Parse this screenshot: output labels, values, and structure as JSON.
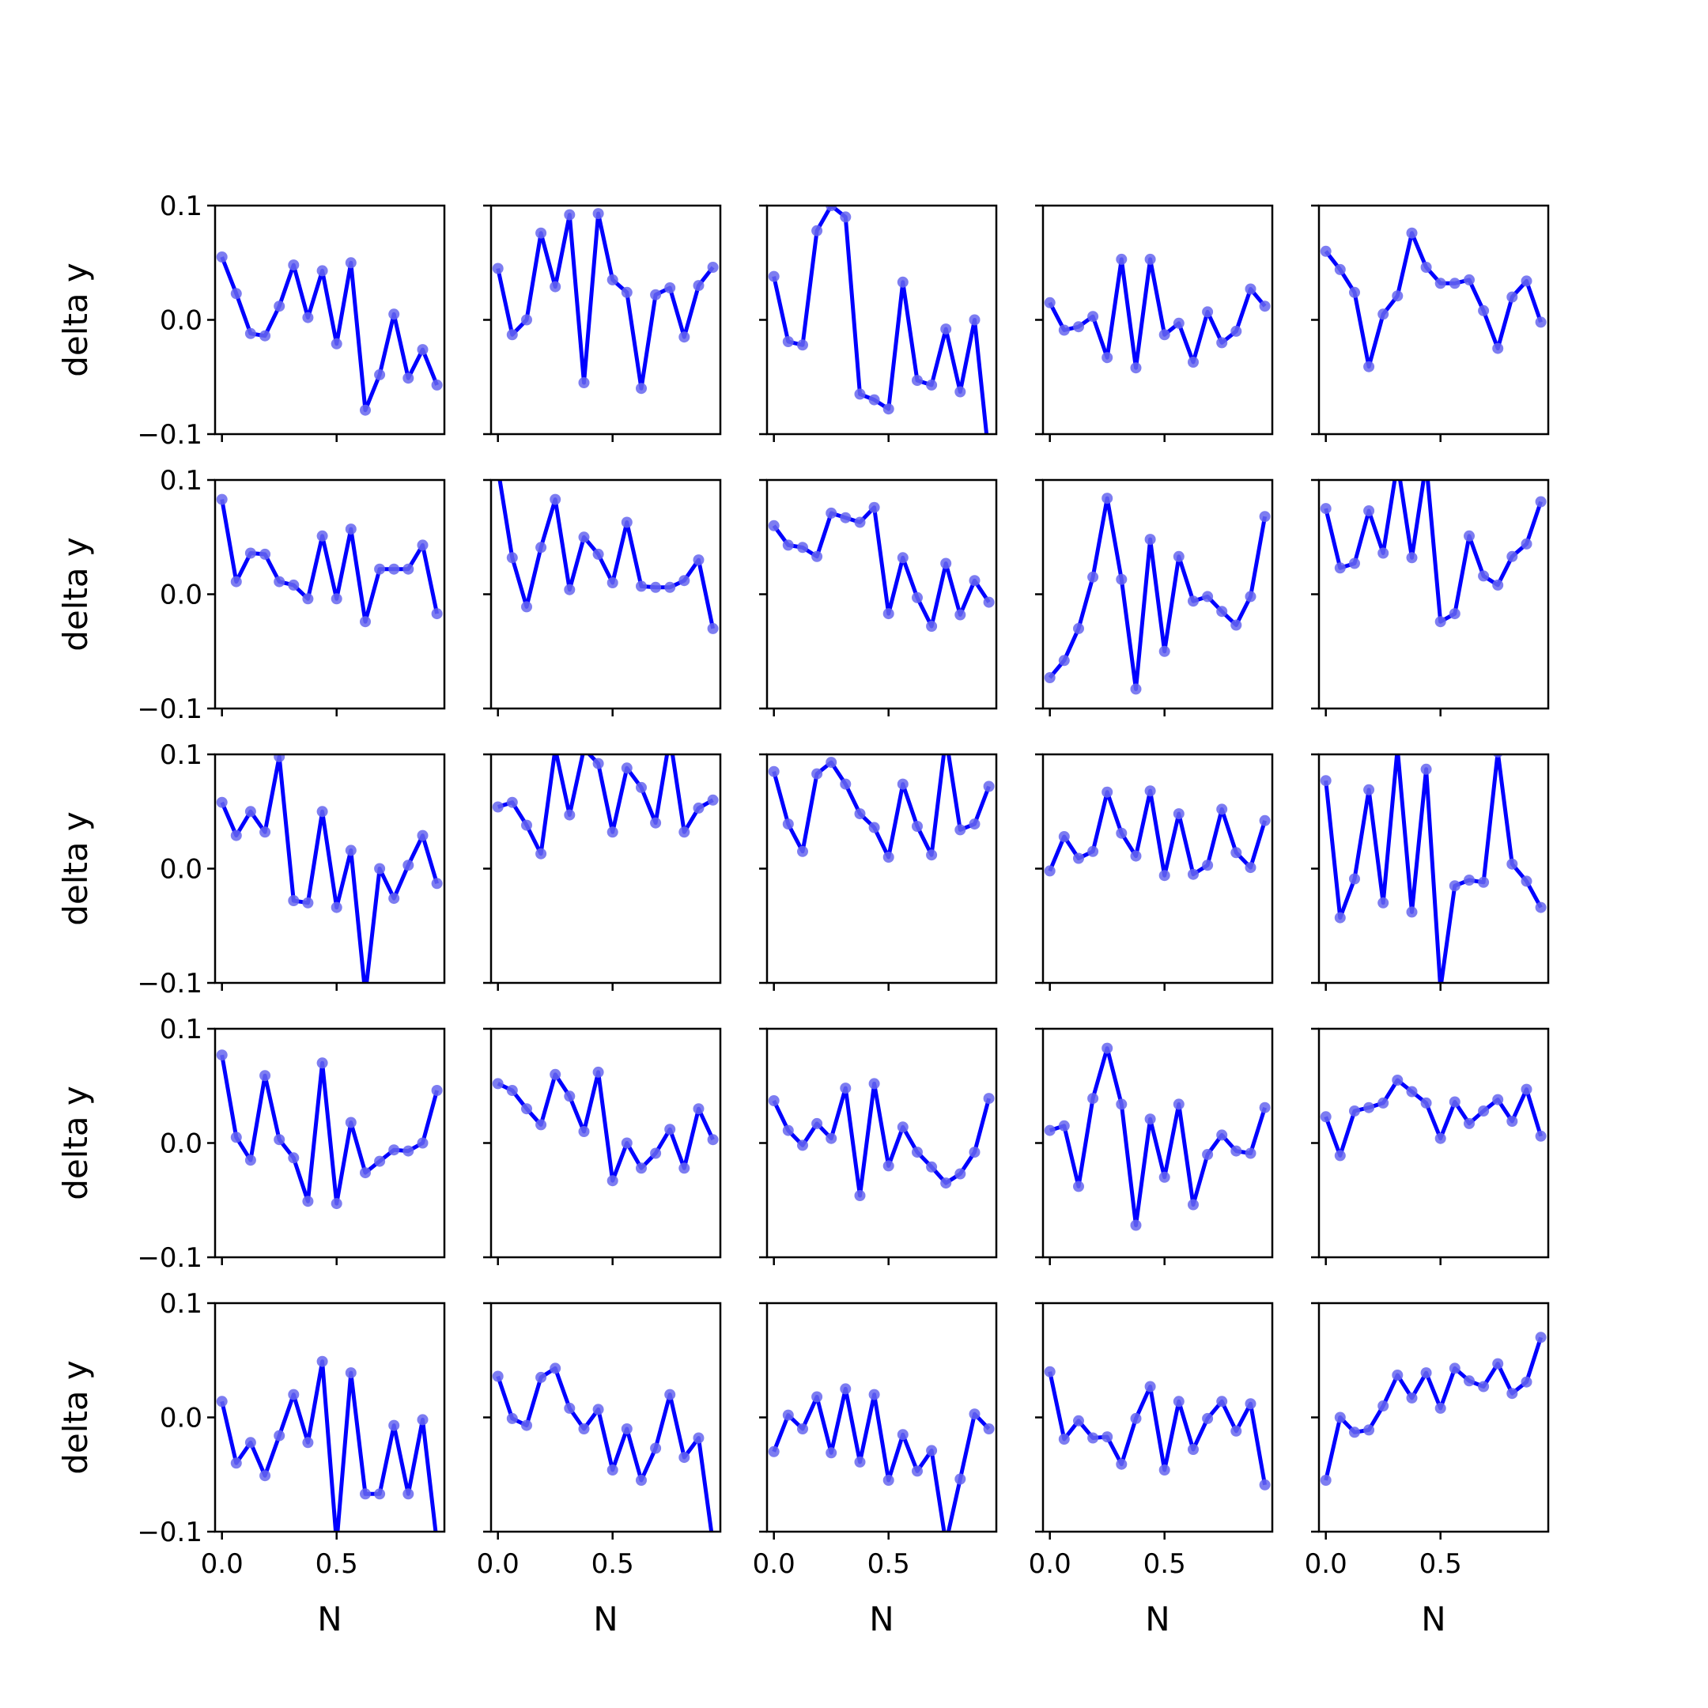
{
  "chart_data": {
    "type": "line",
    "layout": "5x5 grid of small multiples, shared axes",
    "xlabel": "N",
    "ylabel": "delta y",
    "xlim": [
      -0.03,
      0.97
    ],
    "ylim": [
      -0.1,
      0.1
    ],
    "x_ticks": [
      0.0,
      0.5
    ],
    "x_tick_labels": [
      "0.0",
      "0.5"
    ],
    "y_ticks": [
      -0.1,
      0.0,
      0.1
    ],
    "y_tick_labels": [
      "−0.1",
      "0.0",
      "0.1"
    ],
    "grid": false,
    "legend": "none",
    "line_color": "#0000ff",
    "marker_color": "#6666ee",
    "x": [
      0.0,
      0.0625,
      0.125,
      0.1875,
      0.25,
      0.3125,
      0.375,
      0.4375,
      0.5,
      0.5625,
      0.625,
      0.6875,
      0.75,
      0.8125,
      0.875,
      0.9375
    ],
    "panels": [
      {
        "values": [
          0.055,
          0.023,
          -0.012,
          -0.014,
          0.012,
          0.048,
          0.002,
          0.043,
          -0.021,
          0.05,
          -0.079,
          -0.048,
          0.005,
          -0.051,
          -0.026,
          -0.057
        ]
      },
      {
        "values": [
          0.045,
          -0.013,
          0.0,
          0.076,
          0.029,
          0.092,
          -0.055,
          0.093,
          0.035,
          0.024,
          -0.06,
          0.022,
          0.028,
          -0.015,
          0.03,
          0.046
        ]
      },
      {
        "values": [
          0.038,
          -0.019,
          -0.022,
          0.078,
          0.1,
          0.09,
          -0.065,
          -0.07,
          -0.078,
          0.033,
          -0.053,
          -0.057,
          -0.008,
          -0.063,
          0.0,
          -0.12
        ]
      },
      {
        "values": [
          0.015,
          -0.009,
          -0.006,
          0.003,
          -0.033,
          0.053,
          -0.042,
          0.053,
          -0.013,
          -0.003,
          -0.037,
          0.007,
          -0.02,
          -0.01,
          0.027,
          0.012
        ]
      },
      {
        "values": [
          0.06,
          0.044,
          0.024,
          -0.041,
          0.005,
          0.021,
          0.076,
          0.046,
          0.032,
          0.032,
          0.035,
          0.008,
          -0.025,
          0.02,
          0.034,
          -0.002
        ]
      },
      {
        "values": [
          0.083,
          0.011,
          0.036,
          0.035,
          0.011,
          0.008,
          -0.004,
          0.051,
          -0.004,
          0.057,
          -0.024,
          0.022,
          0.022,
          0.022,
          0.043,
          -0.017
        ]
      },
      {
        "values": [
          0.11,
          0.032,
          -0.011,
          0.041,
          0.083,
          0.004,
          0.05,
          0.035,
          0.01,
          0.063,
          0.007,
          0.006,
          0.006,
          0.012,
          0.03,
          -0.03
        ]
      },
      {
        "values": [
          0.06,
          0.043,
          0.041,
          0.033,
          0.071,
          0.067,
          0.063,
          0.076,
          -0.017,
          0.032,
          -0.003,
          -0.028,
          0.027,
          -0.018,
          0.012,
          -0.007
        ]
      },
      {
        "values": [
          -0.073,
          -0.058,
          -0.03,
          0.015,
          0.084,
          0.013,
          -0.083,
          0.048,
          -0.05,
          0.033,
          -0.006,
          -0.002,
          -0.015,
          -0.027,
          -0.002,
          0.068
        ]
      },
      {
        "values": [
          0.075,
          0.023,
          0.027,
          0.073,
          0.036,
          0.115,
          0.032,
          0.115,
          -0.024,
          -0.017,
          0.051,
          0.016,
          0.008,
          0.033,
          0.044,
          0.081
        ]
      },
      {
        "values": [
          0.058,
          0.029,
          0.05,
          0.032,
          0.098,
          -0.028,
          -0.03,
          0.05,
          -0.034,
          0.016,
          -0.11,
          0.0,
          -0.026,
          0.003,
          0.029,
          -0.013
        ]
      },
      {
        "values": [
          0.054,
          0.058,
          0.038,
          0.013,
          0.105,
          0.047,
          0.105,
          0.092,
          0.032,
          0.088,
          0.071,
          0.04,
          0.115,
          0.032,
          0.053,
          0.06
        ]
      },
      {
        "values": [
          0.085,
          0.039,
          0.015,
          0.083,
          0.093,
          0.074,
          0.048,
          0.036,
          0.01,
          0.074,
          0.037,
          0.012,
          0.115,
          0.034,
          0.039,
          0.072
        ]
      },
      {
        "values": [
          -0.002,
          0.028,
          0.009,
          0.015,
          0.067,
          0.031,
          0.011,
          0.068,
          -0.006,
          0.048,
          -0.005,
          0.003,
          0.052,
          0.014,
          0.001,
          0.042
        ]
      },
      {
        "values": [
          0.077,
          -0.043,
          -0.009,
          0.069,
          -0.03,
          0.105,
          -0.038,
          0.087,
          -0.105,
          -0.015,
          -0.01,
          -0.012,
          0.102,
          0.004,
          -0.011,
          -0.034
        ]
      },
      {
        "values": [
          0.077,
          0.005,
          -0.015,
          0.059,
          0.003,
          -0.013,
          -0.051,
          0.07,
          -0.053,
          0.018,
          -0.026,
          -0.016,
          -0.006,
          -0.007,
          0.0,
          0.046
        ]
      },
      {
        "values": [
          0.052,
          0.046,
          0.03,
          0.016,
          0.06,
          0.041,
          0.01,
          0.062,
          -0.033,
          0.0,
          -0.022,
          -0.009,
          0.012,
          -0.022,
          0.03,
          0.003
        ]
      },
      {
        "values": [
          0.037,
          0.011,
          -0.002,
          0.017,
          0.004,
          0.048,
          -0.046,
          0.052,
          -0.02,
          0.014,
          -0.008,
          -0.021,
          -0.035,
          -0.027,
          -0.008,
          0.039
        ]
      },
      {
        "values": [
          0.011,
          0.015,
          -0.038,
          0.039,
          0.083,
          0.034,
          -0.072,
          0.021,
          -0.03,
          0.034,
          -0.054,
          -0.01,
          0.007,
          -0.007,
          -0.009,
          0.031
        ]
      },
      {
        "values": [
          0.023,
          -0.011,
          0.028,
          0.031,
          0.035,
          0.055,
          0.045,
          0.035,
          0.004,
          0.036,
          0.017,
          0.028,
          0.038,
          0.019,
          0.047,
          0.006
        ]
      },
      {
        "values": [
          0.014,
          -0.04,
          -0.022,
          -0.051,
          -0.016,
          0.02,
          -0.022,
          0.049,
          -0.11,
          0.039,
          -0.067,
          -0.067,
          -0.007,
          -0.067,
          -0.002,
          -0.11
        ]
      },
      {
        "values": [
          0.036,
          -0.001,
          -0.007,
          0.035,
          0.043,
          0.008,
          -0.01,
          0.007,
          -0.046,
          -0.01,
          -0.055,
          -0.027,
          0.02,
          -0.035,
          -0.018,
          -0.11
        ]
      },
      {
        "values": [
          -0.03,
          0.002,
          -0.01,
          0.018,
          -0.031,
          0.025,
          -0.039,
          0.02,
          -0.055,
          -0.015,
          -0.047,
          -0.029,
          -0.11,
          -0.054,
          0.003,
          -0.01
        ]
      },
      {
        "values": [
          0.04,
          -0.019,
          -0.003,
          -0.018,
          -0.017,
          -0.041,
          -0.001,
          0.027,
          -0.046,
          0.014,
          -0.028,
          -0.001,
          0.014,
          -0.012,
          0.012,
          -0.059
        ]
      },
      {
        "values": [
          -0.055,
          0.0,
          -0.013,
          -0.011,
          0.01,
          0.037,
          0.017,
          0.039,
          0.008,
          0.043,
          0.032,
          0.027,
          0.047,
          0.021,
          0.031,
          0.07
        ]
      }
    ]
  }
}
